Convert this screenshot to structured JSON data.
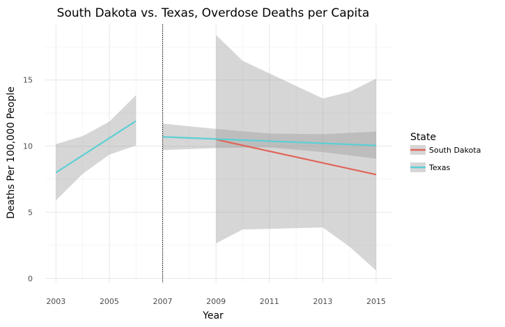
{
  "chart_data": {
    "type": "line",
    "title": "South Dakota vs. Texas, Overdose Deaths per Capita",
    "xlabel": "Year",
    "ylabel": "Deaths Per 100,000 People",
    "xlim": [
      2002.6,
      2015.6
    ],
    "ylim": [
      -0.3,
      19.2
    ],
    "x_ticks": [
      2003,
      2005,
      2007,
      2009,
      2011,
      2013,
      2015
    ],
    "x_tick_labels": [
      "2003",
      "2005",
      "2007",
      "2009",
      "2011",
      "2013",
      "2015"
    ],
    "y_ticks": [
      0,
      5,
      10,
      15
    ],
    "y_tick_labels": [
      "0",
      "5",
      "10",
      "15"
    ],
    "grid": true,
    "legend_position": "right",
    "legend_title": "State",
    "reference_line": {
      "x": 2007,
      "style": "dotted"
    },
    "series": [
      {
        "name": "South Dakota",
        "color": "#e0655a",
        "segments": [
          {
            "x": [
              2009,
              2015
            ],
            "y": [
              10.5,
              7.85
            ],
            "ci_x": [
              2009,
              2010,
              2011,
              2012,
              2013,
              2014,
              2015
            ],
            "ci_lower": [
              2.65,
              3.7,
              3.75,
              3.8,
              3.85,
              2.4,
              0.6
            ],
            "ci_upper": [
              18.4,
              16.45,
              15.5,
              14.55,
              13.6,
              14.1,
              15.1
            ]
          }
        ]
      },
      {
        "name": "Texas",
        "color": "#5bcfd4",
        "segments": [
          {
            "x": [
              2003,
              2006
            ],
            "y": [
              8.0,
              11.9
            ],
            "ci_x": [
              2003,
              2004,
              2005,
              2006
            ],
            "ci_lower": [
              5.9,
              7.9,
              9.35,
              10.05
            ],
            "ci_upper": [
              10.15,
              10.75,
              11.85,
              13.85
            ]
          },
          {
            "x": [
              2007,
              2015
            ],
            "y": [
              10.7,
              10.05
            ],
            "ci_x": [
              2007,
              2009,
              2011,
              2013,
              2015
            ],
            "ci_lower": [
              9.7,
              9.85,
              9.9,
              9.55,
              9.05
            ],
            "ci_upper": [
              11.7,
              11.3,
              10.95,
              10.9,
              11.1
            ]
          }
        ]
      }
    ]
  }
}
